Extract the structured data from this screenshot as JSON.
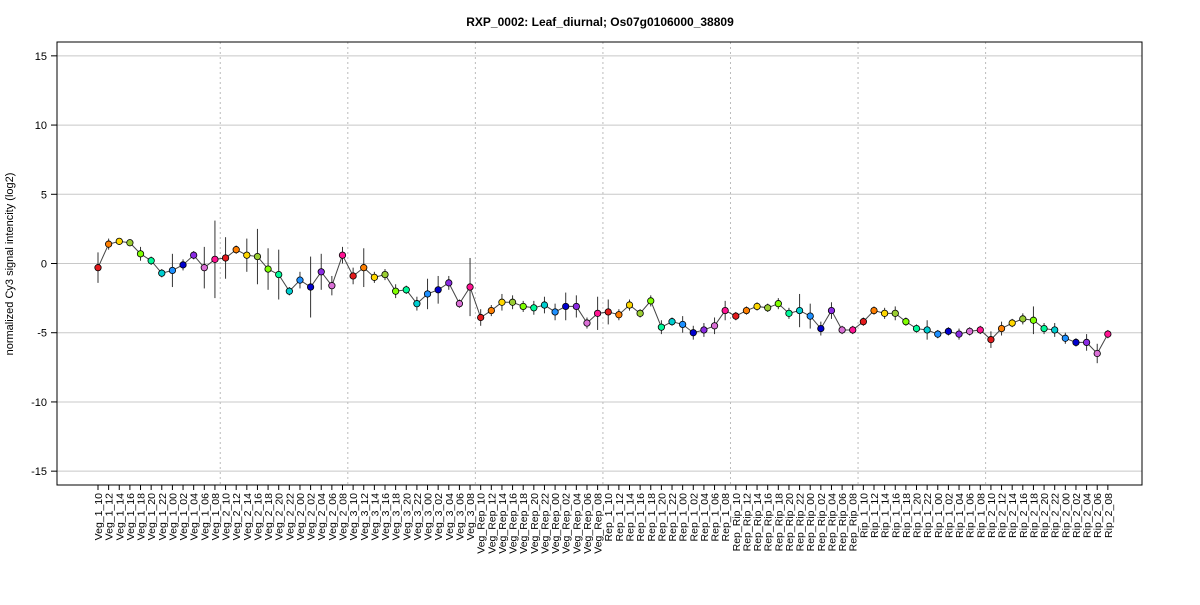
{
  "chart_data": {
    "type": "line",
    "title": "RXP_0002: Leaf_diurnal; Os07g0106000_38809",
    "xlabel": "",
    "ylabel": "normalized Cy3 signal intencity (log2)",
    "ylim": [
      -16,
      16
    ],
    "yticks": [
      -15,
      -10,
      -5,
      0,
      5,
      10,
      15
    ],
    "grid": true,
    "categories": [
      "Veg_1_10",
      "Veg_1_12",
      "Veg_1_14",
      "Veg_1_16",
      "Veg_1_18",
      "Veg_1_20",
      "Veg_1_22",
      "Veg_1_00",
      "Veg_1_02",
      "Veg_1_04",
      "Veg_1_06",
      "Veg_1_08",
      "Veg_2_10",
      "Veg_2_12",
      "Veg_2_14",
      "Veg_2_16",
      "Veg_2_18",
      "Veg_2_20",
      "Veg_2_22",
      "Veg_2_00",
      "Veg_2_02",
      "Veg_2_04",
      "Veg_2_06",
      "Veg_2_08",
      "Veg_3_10",
      "Veg_3_12",
      "Veg_3_14",
      "Veg_3_16",
      "Veg_3_18",
      "Veg_3_20",
      "Veg_3_22",
      "Veg_3_00",
      "Veg_3_02",
      "Veg_3_04",
      "Veg_3_06",
      "Veg_3_08",
      "Veg_Rep_10",
      "Veg_Rep_12",
      "Veg_Rep_14",
      "Veg_Rep_16",
      "Veg_Rep_18",
      "Veg_Rep_20",
      "Veg_Rep_22",
      "Veg_Rep_00",
      "Veg_Rep_02",
      "Veg_Rep_04",
      "Veg_Rep_06",
      "Veg_Rep_08",
      "Rep_1_10",
      "Rep_1_12",
      "Rep_1_14",
      "Rep_1_16",
      "Rep_1_18",
      "Rep_1_20",
      "Rep_1_22",
      "Rep_1_00",
      "Rep_1_02",
      "Rep_1_04",
      "Rep_1_06",
      "Rep_1_08",
      "Rep_Rip_10",
      "Rep_Rip_12",
      "Rep_Rip_14",
      "Rep_Rip_16",
      "Rep_Rip_18",
      "Rep_Rip_20",
      "Rep_Rip_22",
      "Rep_Rip_00",
      "Rep_Rip_02",
      "Rep_Rip_04",
      "Rep_Rip_06",
      "Rep_Rip_08",
      "Rip_1_10",
      "Rip_1_12",
      "Rip_1_14",
      "Rip_1_16",
      "Rip_1_18",
      "Rip_1_20",
      "Rip_1_22",
      "Rip_1_00",
      "Rip_1_02",
      "Rip_1_04",
      "Rip_1_06",
      "Rip_1_08",
      "Rip_2_10",
      "Rip_2_12",
      "Rip_2_14",
      "Rip_2_16",
      "Rip_2_18",
      "Rip_2_20",
      "Rip_2_22",
      "Rip_2_00",
      "Rip_2_02",
      "Rip_2_04",
      "Rip_2_06",
      "Rip_2_08"
    ],
    "values": [
      -0.3,
      1.4,
      1.6,
      1.5,
      0.7,
      0.2,
      -0.7,
      -0.5,
      -0.1,
      0.6,
      -0.3,
      0.3,
      0.4,
      1.0,
      0.6,
      0.5,
      -0.4,
      -0.8,
      -2.0,
      -1.2,
      -1.7,
      -0.6,
      -1.6,
      0.6,
      -0.9,
      -0.3,
      -1.0,
      -0.8,
      -2.0,
      -1.9,
      -2.9,
      -2.2,
      -1.9,
      -1.4,
      -2.9,
      -1.7,
      -3.9,
      -3.4,
      -2.8,
      -2.8,
      -3.1,
      -3.2,
      -3.0,
      -3.5,
      -3.1,
      -3.1,
      -4.3,
      -3.6,
      -3.5,
      -3.7,
      -3.0,
      -3.6,
      -2.7,
      -4.6,
      -4.2,
      -4.4,
      -5.0,
      -4.8,
      -4.5,
      -3.4,
      -3.8,
      -3.4,
      -3.1,
      -3.2,
      -2.9,
      -3.6,
      -3.4,
      -3.8,
      -4.7,
      -3.4,
      -4.8,
      -4.8,
      -4.2,
      -3.4,
      -3.6,
      -3.6,
      -4.2,
      -4.7,
      -4.8,
      -5.1,
      -4.9,
      -5.1,
      -4.9,
      -4.8,
      -5.5,
      -4.7,
      -4.3,
      -4.0,
      -4.1,
      -4.7,
      -4.8,
      -5.4,
      -5.7,
      -5.7,
      -6.5,
      -5.1
    ],
    "errors": [
      1.1,
      0.4,
      0.2,
      0.2,
      0.5,
      0.3,
      0.3,
      1.2,
      0.4,
      0.3,
      1.5,
      2.8,
      1.5,
      0.3,
      1.2,
      2.0,
      1.5,
      1.8,
      0.3,
      0.6,
      2.2,
      1.3,
      0.7,
      0.6,
      0.6,
      1.4,
      0.4,
      0.4,
      0.5,
      0.3,
      0.5,
      1.1,
      1.0,
      0.5,
      0.3,
      2.1,
      0.6,
      0.4,
      0.6,
      0.5,
      0.4,
      0.5,
      0.6,
      0.6,
      1.0,
      0.8,
      0.4,
      1.2,
      0.9,
      0.4,
      0.4,
      0.3,
      0.4,
      0.5,
      0.3,
      0.6,
      0.5,
      0.5,
      0.6,
      0.7,
      0.3,
      0.3,
      0.3,
      0.3,
      0.4,
      0.4,
      1.2,
      0.9,
      0.5,
      0.6,
      0.3,
      0.3,
      0.3,
      0.3,
      0.4,
      0.5,
      0.3,
      0.3,
      0.7,
      0.3,
      0.3,
      0.4,
      0.3,
      0.3,
      0.6,
      0.5,
      0.3,
      0.4,
      1.0,
      0.4,
      0.5,
      0.4,
      0.3,
      0.6,
      0.7,
      0.3
    ],
    "point_colors": [
      "#E31A1C",
      "#FF7F00",
      "#FFD700",
      "#9ACD32",
      "#7FFF00",
      "#00FA9A",
      "#00CED1",
      "#1E90FF",
      "#0000CD",
      "#8A2BE2",
      "#DA70D6",
      "#FF1493",
      "#E31A1C",
      "#FF7F00",
      "#FFD700",
      "#9ACD32",
      "#7FFF00",
      "#00FA9A",
      "#00CED1",
      "#1E90FF",
      "#0000CD",
      "#8A2BE2",
      "#DA70D6",
      "#FF1493",
      "#E31A1C",
      "#FF7F00",
      "#FFD700",
      "#9ACD32",
      "#7FFF00",
      "#00FA9A",
      "#00CED1",
      "#1E90FF",
      "#0000CD",
      "#8A2BE2",
      "#DA70D6",
      "#FF1493",
      "#E31A1C",
      "#FF7F00",
      "#FFD700",
      "#9ACD32",
      "#7FFF00",
      "#00FA9A",
      "#00CED1",
      "#1E90FF",
      "#0000CD",
      "#8A2BE2",
      "#DA70D6",
      "#FF1493",
      "#E31A1C",
      "#FF7F00",
      "#FFD700",
      "#9ACD32",
      "#7FFF00",
      "#00FA9A",
      "#00CED1",
      "#1E90FF",
      "#0000CD",
      "#8A2BE2",
      "#DA70D6",
      "#FF1493",
      "#E31A1C",
      "#FF7F00",
      "#FFD700",
      "#9ACD32",
      "#7FFF00",
      "#00FA9A",
      "#00CED1",
      "#1E90FF",
      "#0000CD",
      "#8A2BE2",
      "#DA70D6",
      "#FF1493",
      "#E31A1C",
      "#FF7F00",
      "#FFD700",
      "#9ACD32",
      "#7FFF00",
      "#00FA9A",
      "#00CED1",
      "#1E90FF",
      "#0000CD",
      "#8A2BE2",
      "#DA70D6",
      "#FF1493",
      "#E31A1C",
      "#FF7F00",
      "#FFD700",
      "#9ACD32",
      "#7FFF00",
      "#00FA9A",
      "#00CED1",
      "#1E90FF",
      "#0000CD",
      "#8A2BE2",
      "#DA70D6",
      "#FF1493"
    ],
    "group_separators_after": [
      "Veg_1_08",
      "Veg_2_08",
      "Veg_3_08",
      "Veg_Rep_08",
      "Rep_1_08",
      "Rep_Rip_08",
      "Rip_1_08"
    ],
    "line_color": "#444444",
    "grid_color": "#C8C8C8",
    "separator_color": "#BBBBBB"
  }
}
